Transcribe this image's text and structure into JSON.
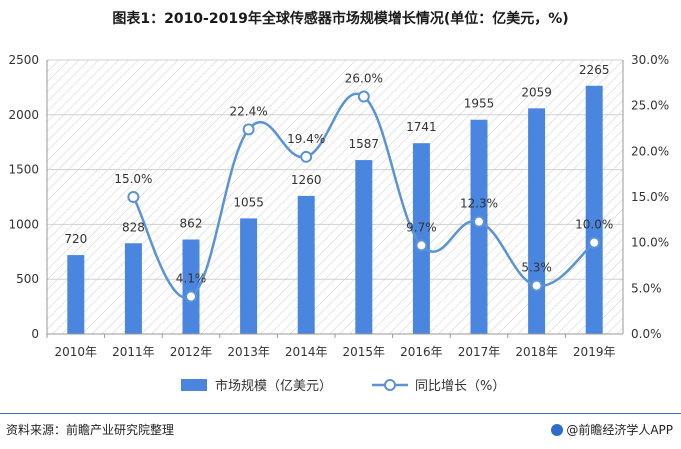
{
  "title": "图表1：2010-2019年全球传感器市场规模增长情况(单位：亿美元，%)",
  "footer": {
    "source": "资料来源：前瞻产业研究院整理",
    "brand": "@前瞻经济学人APP"
  },
  "colors": {
    "bar": "#4a86e0",
    "line": "#5b93d6",
    "grid": "#d0d0d0",
    "axis": "#999999"
  },
  "chart_data": {
    "type": "bar",
    "categories": [
      "2010年",
      "2011年",
      "2012年",
      "2013年",
      "2014年",
      "2015年",
      "2016年",
      "2017年",
      "2018年",
      "2019年"
    ],
    "series": [
      {
        "name": "市场规模（亿美元）",
        "type": "bar",
        "axis": "left",
        "values": [
          720,
          828,
          862,
          1055,
          1260,
          1587,
          1741,
          1955,
          2059,
          2265
        ]
      },
      {
        "name": "同比增长（%）",
        "type": "line",
        "axis": "right",
        "values": [
          null,
          15.0,
          4.1,
          22.4,
          19.4,
          26.0,
          9.7,
          12.3,
          5.3,
          10.0
        ]
      }
    ],
    "bar_labels": [
      "720",
      "828",
      "862",
      "1055",
      "1260",
      "1587",
      "1741",
      "1955",
      "2059",
      "2265"
    ],
    "line_labels": [
      "",
      "15.0%",
      "4.1%",
      "22.4%",
      "19.4%",
      "26.0%",
      "9.7%",
      "12.3%",
      "5.3%",
      "10.0%"
    ],
    "y_left": {
      "range": [
        0,
        2500
      ],
      "ticks": [
        "0",
        "500",
        "1000",
        "1500",
        "2000",
        "2500"
      ]
    },
    "y_right": {
      "range": [
        0,
        30
      ],
      "ticks": [
        "0.0%",
        "5.0%",
        "10.0%",
        "15.0%",
        "20.0%",
        "25.0%",
        "30.0%"
      ]
    },
    "grid": true,
    "legend": "bottom-center",
    "smooth_line": true
  }
}
